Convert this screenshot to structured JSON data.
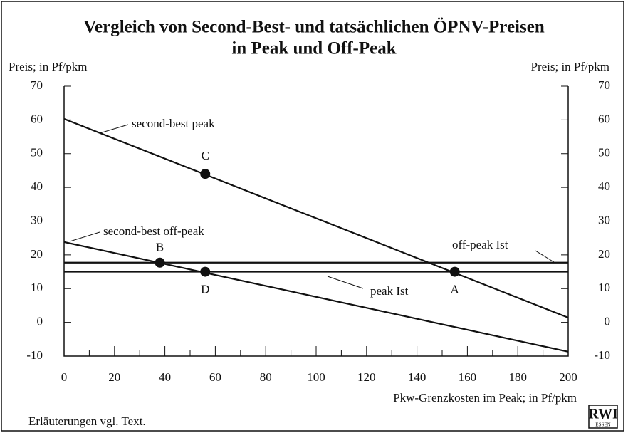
{
  "chart_data": {
    "type": "line",
    "title": [
      "Vergleich von Second-Best- und tatsächlichen ÖPNV-Preisen",
      "in Peak und Off-Peak"
    ],
    "y_label": "Preis; in Pf/pkm",
    "y2_label": "Preis; in Pf/pkm",
    "x_label": "Pkw-Grenzkosten im Peak; in Pf/pkm",
    "footnote": "Erläuterungen vgl. Text.",
    "logo": [
      "RWI",
      "ESSEN"
    ],
    "xlim": [
      0,
      200
    ],
    "xticks": [
      0,
      20,
      40,
      60,
      80,
      100,
      120,
      140,
      160,
      180,
      200
    ],
    "ylim": [
      -10,
      70
    ],
    "yticks": [
      -10,
      0,
      10,
      20,
      30,
      40,
      50,
      60,
      70
    ],
    "y2lim": [
      -10,
      70
    ],
    "y2ticks": [
      -10,
      0,
      10,
      20,
      30,
      40,
      50,
      60,
      70
    ],
    "series": [
      {
        "name": "second-best peak",
        "color": "#111111",
        "x": [
          0,
          200
        ],
        "values": [
          60.3,
          1.4
        ]
      },
      {
        "name": "second-best off-peak",
        "color": "#111111",
        "x": [
          0,
          200
        ],
        "values": [
          23.8,
          -8.7
        ]
      },
      {
        "name": "off-peak Ist",
        "color": "#111111",
        "x": [
          0,
          200
        ],
        "values": [
          17.7,
          17.7
        ]
      },
      {
        "name": "peak Ist",
        "color": "#111111",
        "x": [
          0,
          200
        ],
        "values": [
          15,
          15
        ]
      }
    ],
    "points": [
      {
        "label": "C",
        "x": 56,
        "y": 44
      },
      {
        "label": "B",
        "x": 38,
        "y": 17.7
      },
      {
        "label": "D",
        "x": 56,
        "y": 15
      },
      {
        "label": "A",
        "x": 155,
        "y": 15
      }
    ]
  }
}
